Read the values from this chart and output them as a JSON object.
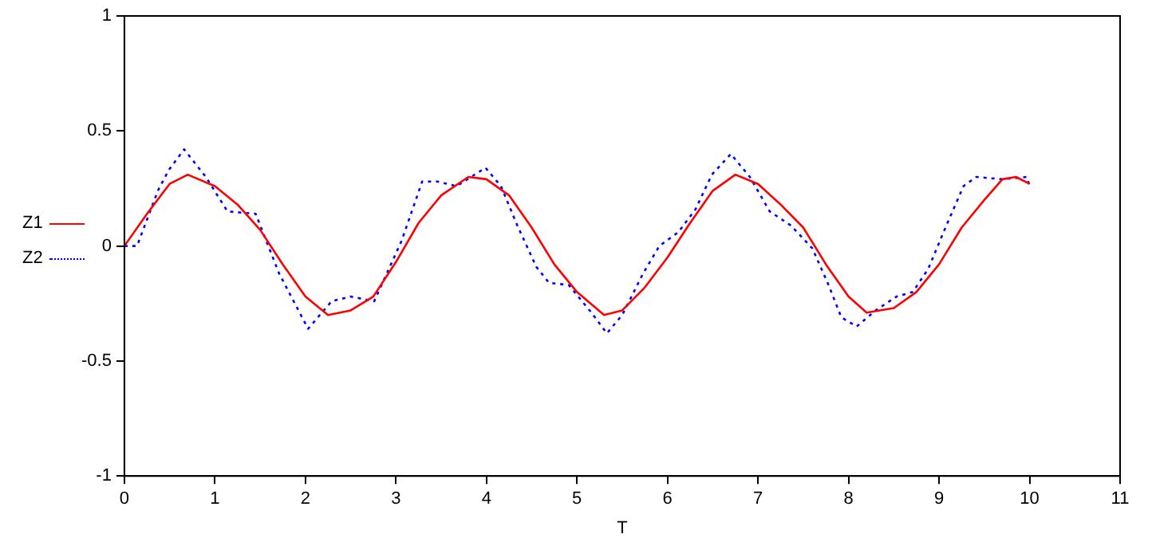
{
  "chart_data": {
    "type": "line",
    "xlabel": "T",
    "xlim": [
      0,
      11
    ],
    "xticks": [
      0,
      1,
      2,
      3,
      4,
      5,
      6,
      7,
      8,
      9,
      10,
      11
    ],
    "ylim": [
      -1,
      1
    ],
    "yticks": [
      -1,
      -0.5,
      0,
      0.5,
      1
    ],
    "grid": false,
    "legend": "left",
    "marker": "none",
    "series": [
      {
        "name": "Z1",
        "color": "#ff0000",
        "line_style": "solid",
        "x": [
          0,
          0.25,
          0.5,
          0.7,
          1,
          1.25,
          1.5,
          1.75,
          2,
          2.25,
          2.5,
          2.75,
          3,
          3.25,
          3.5,
          3.8,
          4,
          4.25,
          4.5,
          4.75,
          5,
          5.3,
          5.5,
          5.75,
          6,
          6.25,
          6.5,
          6.75,
          7,
          7.25,
          7.5,
          7.75,
          8,
          8.2,
          8.5,
          8.75,
          9,
          9.25,
          9.5,
          9.7,
          9.85,
          10
        ],
        "values": [
          0,
          0.14,
          0.27,
          0.31,
          0.26,
          0.18,
          0.07,
          -0.08,
          -0.22,
          -0.3,
          -0.28,
          -0.22,
          -0.07,
          0.1,
          0.22,
          0.3,
          0.29,
          0.22,
          0.08,
          -0.08,
          -0.2,
          -0.3,
          -0.28,
          -0.18,
          -0.05,
          0.1,
          0.24,
          0.31,
          0.27,
          0.18,
          0.08,
          -0.08,
          -0.22,
          -0.29,
          -0.27,
          -0.2,
          -0.08,
          0.08,
          0.2,
          0.29,
          0.3,
          0.27
        ]
      },
      {
        "name": "Z2",
        "color": "#0000ff",
        "line_style": "dotted",
        "x": [
          0,
          0.14,
          0.37,
          0.49,
          0.66,
          0.9,
          1.14,
          1.45,
          1.71,
          2.03,
          2.29,
          2.5,
          2.76,
          3.06,
          3.29,
          3.46,
          3.67,
          3.99,
          4.16,
          4.34,
          4.55,
          4.69,
          4.91,
          5.16,
          5.33,
          5.5,
          5.73,
          5.91,
          6.12,
          6.31,
          6.49,
          6.7,
          6.91,
          7.13,
          7.36,
          7.6,
          7.78,
          7.92,
          8.09,
          8.3,
          8.53,
          8.71,
          8.88,
          9.06,
          9.27,
          9.41,
          9.7,
          9.97,
          10
        ],
        "values": [
          0,
          0,
          0.24,
          0.33,
          0.42,
          0.3,
          0.15,
          0.14,
          -0.12,
          -0.36,
          -0.24,
          -0.22,
          -0.24,
          0.02,
          0.28,
          0.28,
          0.26,
          0.34,
          0.26,
          0.09,
          -0.09,
          -0.16,
          -0.17,
          -0.29,
          -0.38,
          -0.3,
          -0.12,
          0,
          0.06,
          0.16,
          0.31,
          0.4,
          0.3,
          0.15,
          0.09,
          -0.01,
          -0.17,
          -0.31,
          -0.35,
          -0.28,
          -0.22,
          -0.2,
          -0.1,
          0.07,
          0.26,
          0.3,
          0.29,
          0.3,
          0.26
        ]
      }
    ]
  }
}
